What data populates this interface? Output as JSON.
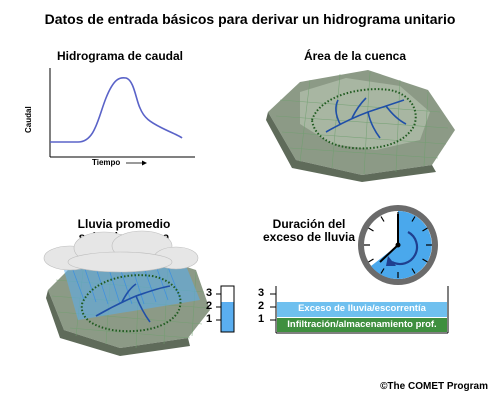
{
  "title": "Datos de entrada básicos para derivar un hidrograma unitario",
  "panels": {
    "hydrograph": {
      "title": "Hidrograma de caudal",
      "ylabel": "Caudal",
      "xlabel": "Tiempo"
    },
    "basin": {
      "title": "Área de la cuenca"
    },
    "rain": {
      "title_line1": "Lluvia promedio",
      "title_line2": "sobre la cuenca",
      "gauge_ticks": [
        "3",
        "2",
        "1"
      ]
    },
    "duration": {
      "title_line1": "Duración del",
      "title_line2": "exceso de lluvia",
      "scale_ticks": [
        "3",
        "2",
        "1"
      ],
      "excess_label": "Exceso de lluvia/escorrentía",
      "infiltration_label": "Infiltración/almacenamiento prof."
    }
  },
  "colors": {
    "curve": "#5a63c8",
    "rain_blue": "#5aaef0",
    "excess_blue": "#6fc0ef",
    "infiltration_green": "#3f8f3f",
    "clock_fill": "#4aa8ec"
  },
  "copyright": "©The COMET Program"
}
